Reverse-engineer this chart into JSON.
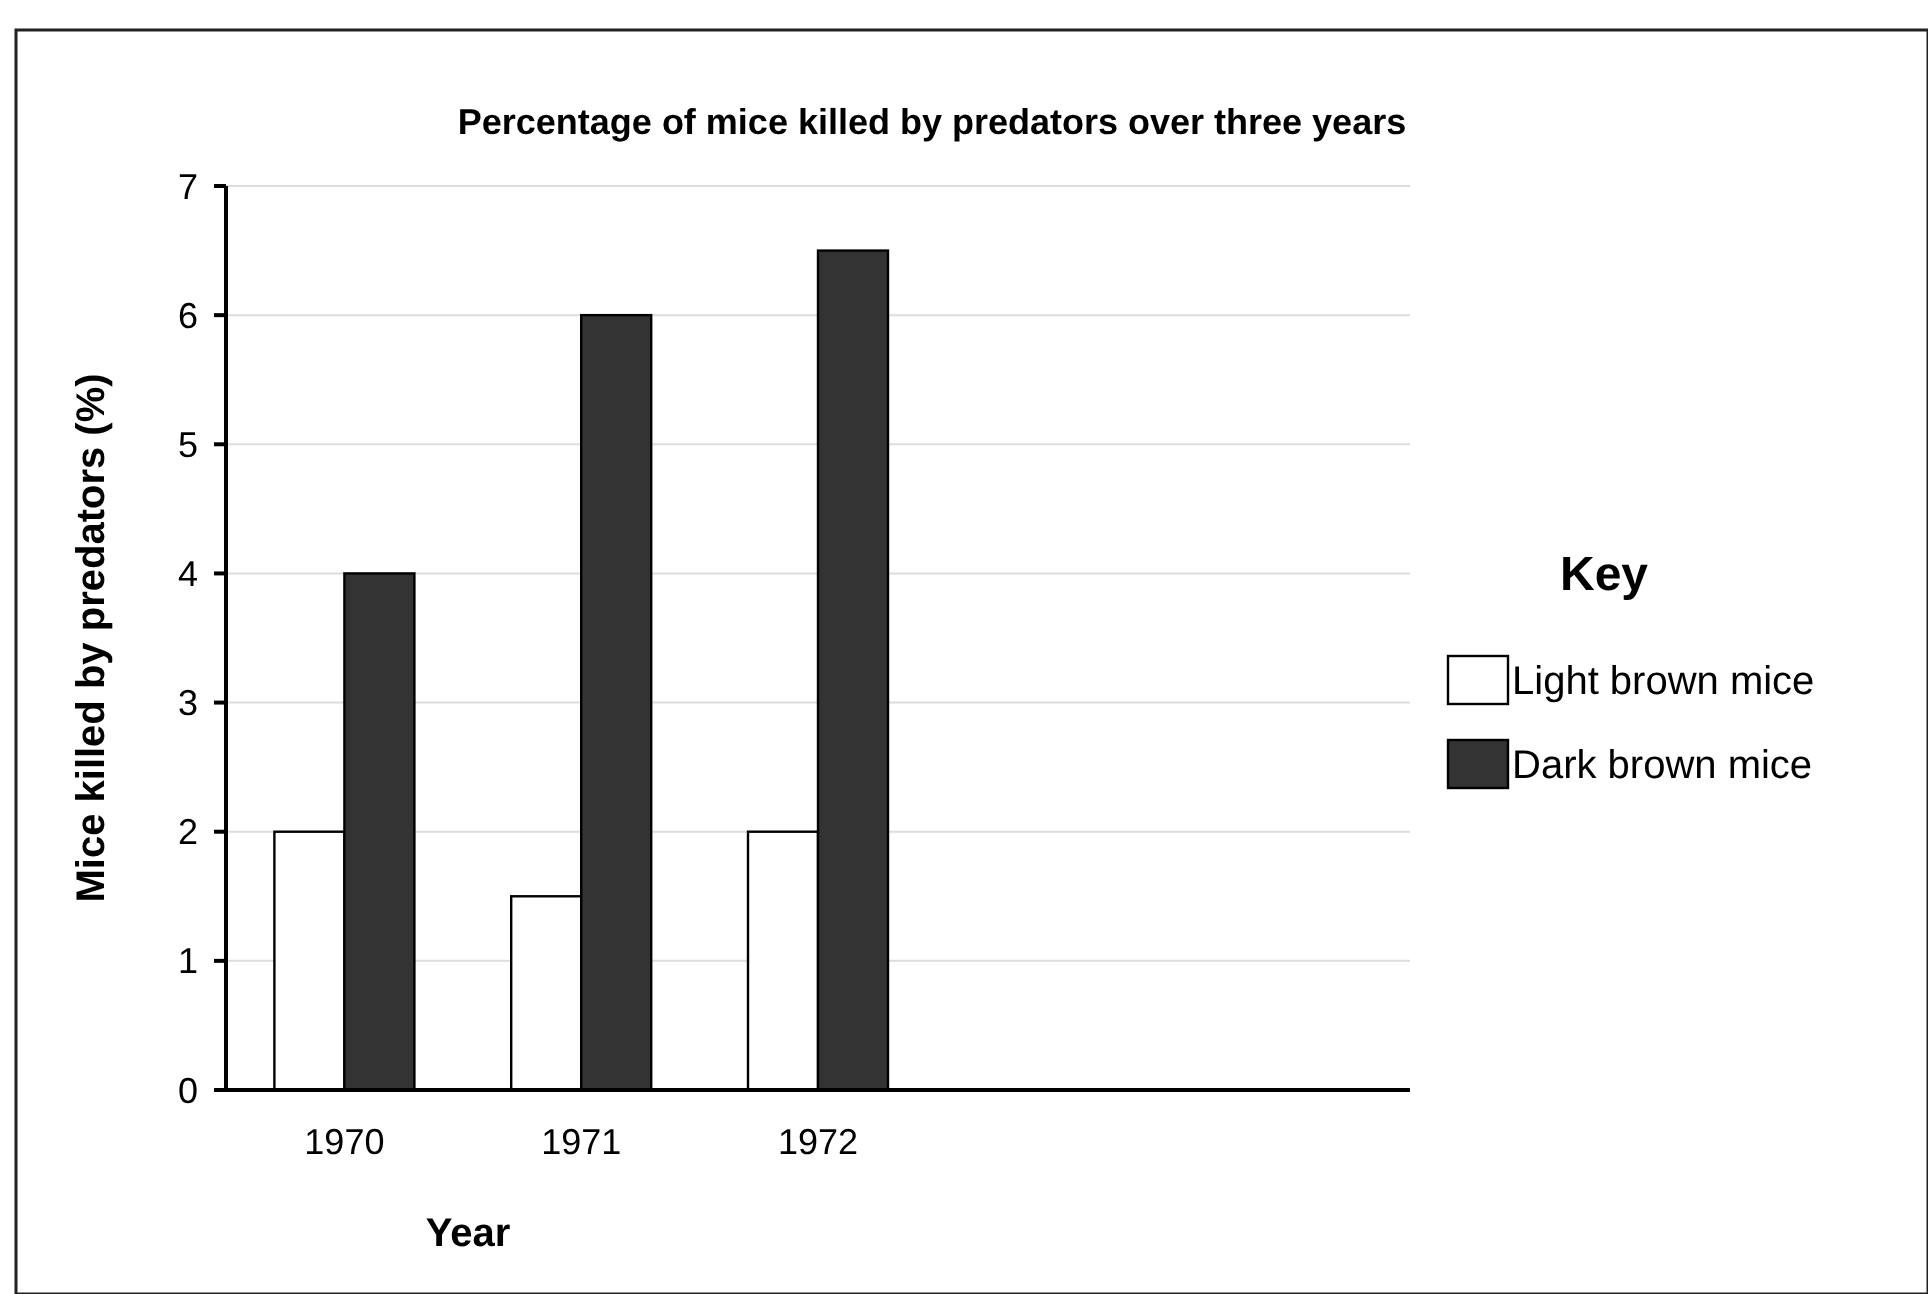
{
  "chart_data": {
    "type": "bar",
    "title": "Percentage of mice killed by predators over three years",
    "xlabel": "Year",
    "ylabel": "Mice killed by predators (%)",
    "legend_title": "Key",
    "legend": "right",
    "grid": "y",
    "categories": [
      "1970",
      "1971",
      "1972",
      null,
      null
    ],
    "series": [
      {
        "name": "Light brown mice",
        "color": "#ffffff",
        "values": [
          2,
          1.5,
          2,
          null,
          null
        ]
      },
      {
        "name": "Dark brown mice",
        "color": "#333333",
        "values": [
          4,
          6,
          6.5,
          null,
          null
        ]
      }
    ],
    "ylim": [
      0,
      7
    ],
    "yticks": [
      0,
      1,
      2,
      3,
      4,
      5,
      6,
      7
    ]
  }
}
